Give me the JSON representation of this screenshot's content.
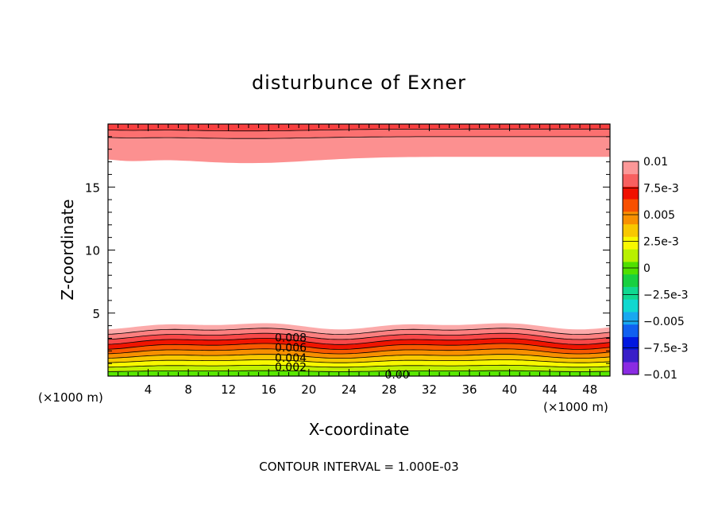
{
  "chart_data": {
    "type": "contour",
    "title": "disturbunce of Exner",
    "xlabel": "X-coordinate",
    "ylabel": "Z-coordinate",
    "x_unit_left": "(×1000 m)",
    "x_unit_right": "(×1000 m)",
    "footer": "CONTOUR INTERVAL = 1.000E-03",
    "xlim": [
      0,
      50
    ],
    "ylim": [
      0,
      20
    ],
    "x_ticks": [
      {
        "value": 4,
        "label": "4"
      },
      {
        "value": 8,
        "label": "8"
      },
      {
        "value": 12,
        "label": "12"
      },
      {
        "value": 16,
        "label": "16"
      },
      {
        "value": 20,
        "label": "20"
      },
      {
        "value": 24,
        "label": "24"
      },
      {
        "value": 28,
        "label": "28"
      },
      {
        "value": 32,
        "label": "32"
      },
      {
        "value": 36,
        "label": "36"
      },
      {
        "value": 40,
        "label": "40"
      },
      {
        "value": 44,
        "label": "44"
      },
      {
        "value": 48,
        "label": "48"
      }
    ],
    "y_ticks": [
      {
        "value": 5,
        "label": "5"
      },
      {
        "value": 10,
        "label": "10"
      },
      {
        "value": 15,
        "label": "15"
      }
    ],
    "contour_labels": [
      {
        "text": "0.008",
        "x": 18.2,
        "z": 3.0
      },
      {
        "text": "0.006",
        "x": 18.2,
        "z": 2.2
      },
      {
        "text": "0.004",
        "x": 18.2,
        "z": 1.4
      },
      {
        "text": "0.002",
        "x": 18.2,
        "z": 0.65
      },
      {
        "text": "0.00",
        "x": 28.8,
        "z": 0.05
      }
    ],
    "colorbar": {
      "colors": [
        "#8a2be2",
        "#3a1fc8",
        "#0018e0",
        "#1060f0",
        "#18a8f0",
        "#10d8d0",
        "#10d890",
        "#18d040",
        "#50e000",
        "#b8f000",
        "#f8f800",
        "#f8c800",
        "#f89000",
        "#f85000",
        "#f01000",
        "#f86060",
        "#fc9898"
      ],
      "labels": [
        "0.01",
        "7.5e-3",
        "0.005",
        "2.5e-3",
        "0",
        "−2.5e-3",
        "−0.005",
        "−7.5e-3",
        "−0.01"
      ]
    },
    "bottom_bands": {
      "colors": [
        "#58e800",
        "#c0f000",
        "#f8f800",
        "#f8c800",
        "#f89000",
        "#f85800",
        "#f01400",
        "#f84848",
        "#fc8080",
        "#fcaaaa"
      ],
      "wave_amplitude_km": 0.3,
      "top_km": 4.0
    },
    "top_bands": {
      "colors": [
        "#fc9090",
        "#fc7070",
        "#f84040"
      ],
      "boundaries_km": [
        17.4,
        19.0,
        19.6,
        20.0
      ]
    }
  }
}
